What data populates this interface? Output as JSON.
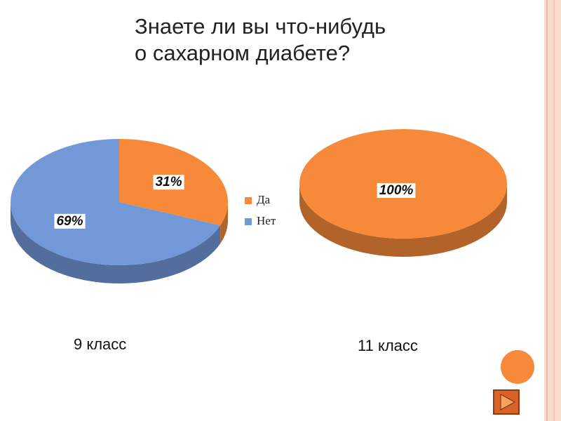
{
  "title": "Знаете ли вы что-нибудь\nо сахарном диабете?",
  "chart_data": [
    {
      "type": "pie",
      "title": "9 класс",
      "categories": [
        "Да",
        "Нет"
      ],
      "values": [
        31,
        69
      ],
      "value_labels": [
        "31%",
        "69%"
      ],
      "colors": [
        "#f68a3a",
        "#7398d8"
      ]
    },
    {
      "type": "pie",
      "title": "11 класс",
      "values": [
        100
      ],
      "value_labels": [
        "100%"
      ],
      "colors": [
        "#f68a3a"
      ]
    }
  ]
}
